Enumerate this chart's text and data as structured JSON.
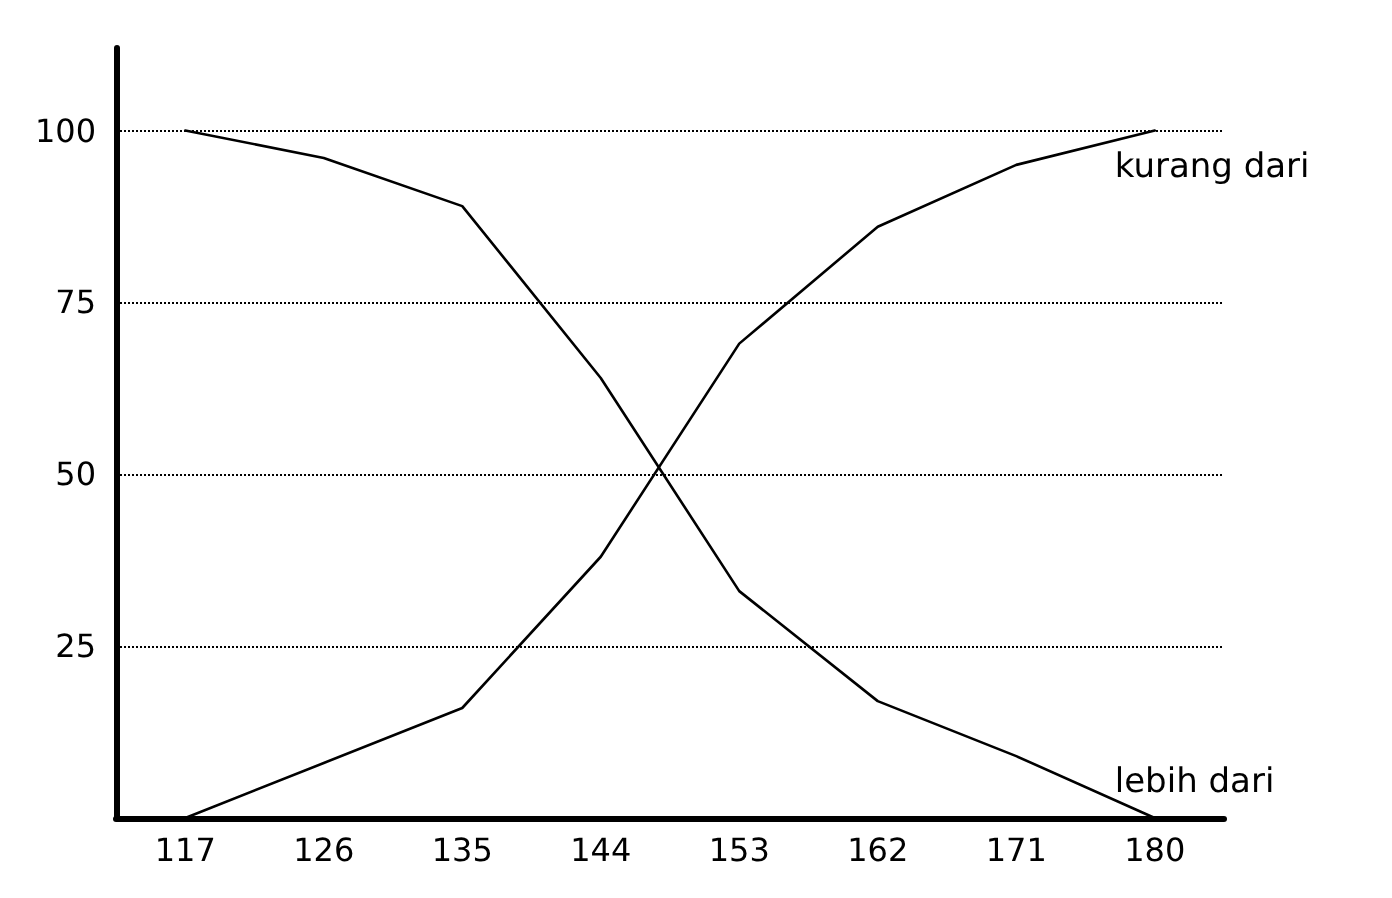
{
  "chart_data": {
    "type": "line",
    "categories": [
      "117",
      "126",
      "135",
      "144",
      "153",
      "162",
      "171",
      "180"
    ],
    "series": [
      {
        "name": "kurang dari",
        "color": "#000000",
        "values": [
          0,
          8,
          16,
          38,
          69,
          86,
          95,
          100
        ]
      },
      {
        "name": "lebih dari",
        "color": "#000000",
        "values": [
          100,
          96,
          89,
          64,
          33,
          17,
          9,
          0
        ]
      }
    ],
    "ylim": [
      0,
      112
    ],
    "yticks": [
      25,
      50,
      75,
      100
    ],
    "grid": "y",
    "legend": false,
    "marker": "none",
    "line_style": "solid"
  }
}
